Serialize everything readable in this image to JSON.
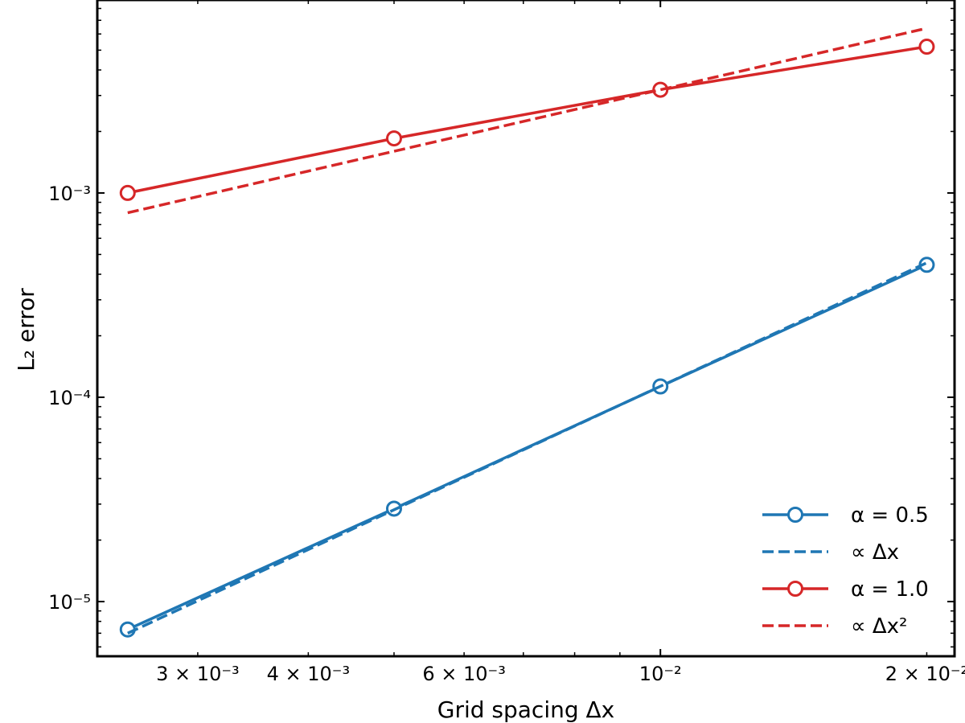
{
  "chart_data": {
    "type": "line",
    "xscale": "log",
    "yscale": "log",
    "xlim": [
      0.00231,
      0.0215
    ],
    "ylim": [
      5.4e-06,
      0.0088
    ],
    "xlabel": "Grid spacing Δx",
    "ylabel": "L₂ error",
    "x_ticks": [
      {
        "value": 0.003,
        "label": "3 × 10⁻³"
      },
      {
        "value": 0.004,
        "label": "4 × 10⁻³"
      },
      {
        "value": 0.006,
        "label": "6 × 10⁻³"
      },
      {
        "value": 0.01,
        "label": "10⁻²"
      },
      {
        "value": 0.02,
        "label": "2 × 10⁻²"
      }
    ],
    "y_ticks": [
      {
        "value": 1e-05,
        "label": "10⁻⁵"
      },
      {
        "value": 0.0001,
        "label": "10⁻⁴"
      },
      {
        "value": 0.001,
        "label": "10⁻³"
      }
    ],
    "grid": false,
    "legend_position": "lower-right",
    "series": [
      {
        "name": "α = 0.5",
        "color": "#1f77b4",
        "style": "solid",
        "marker": "circle-open",
        "x": [
          0.0025,
          0.005,
          0.01,
          0.02
        ],
        "y": [
          7.3e-06,
          2.85e-05,
          0.000113,
          0.000445
        ]
      },
      {
        "name": "∝ Δx",
        "color": "#1f77b4",
        "style": "dashed",
        "marker": "none",
        "x": [
          0.0025,
          0.02
        ],
        "y": [
          7e-06,
          0.000455
        ]
      },
      {
        "name": "α = 1.0",
        "color": "#d62728",
        "style": "solid",
        "marker": "circle-open",
        "x": [
          0.0025,
          0.005,
          0.01,
          0.02
        ],
        "y": [
          0.001,
          0.00185,
          0.0032,
          0.0052
        ]
      },
      {
        "name": "∝ Δx²",
        "color": "#d62728",
        "style": "dashed",
        "marker": "none",
        "x": [
          0.0025,
          0.02
        ],
        "y": [
          0.0008,
          0.0064
        ]
      }
    ]
  }
}
